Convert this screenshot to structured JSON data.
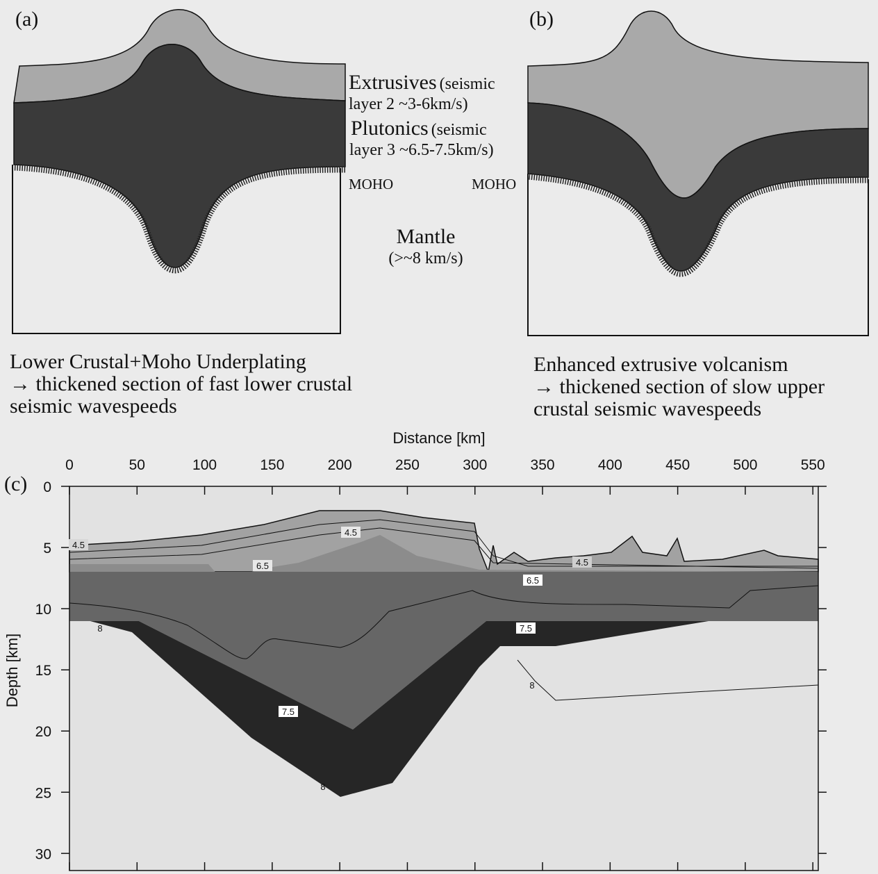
{
  "panel_a": {
    "label": "(a)",
    "caption": [
      "Lower Crustal+Moho Underplating",
      "→ thickened section of fast lower crustal",
      "seismic wavespeeds"
    ]
  },
  "panel_b": {
    "label": "(b)",
    "caption": [
      "Enhanced extrusive volcanism",
      "→ thickened section of slow upper",
      "crustal seismic wavespeeds"
    ]
  },
  "legend": {
    "extrusives": "Extrusives",
    "extrusives_note": "(seismic",
    "extrusives_speed": "layer 2  ~3-6km/s)",
    "plutonics": "Plutonics",
    "plutonics_note": "(seismic",
    "plutonics_speed": "layer 3  ~6.5-7.5km/s)",
    "moho_a": "MOHO",
    "moho_b": "MOHO",
    "mantle": "Mantle",
    "mantle_speed": "(>~8 km/s)"
  },
  "panel_c": {
    "label": "(c)",
    "xlabel": "Distance [km]",
    "ylabel": "Depth [km]",
    "xlim": [
      0,
      554
    ],
    "ylim": [
      0,
      31.4
    ],
    "xticks": [
      0,
      50,
      100,
      150,
      200,
      250,
      300,
      350,
      400,
      450,
      500,
      550
    ],
    "yticks": [
      0,
      5,
      10,
      15,
      20,
      25,
      30
    ],
    "contour_labels": [
      4.5,
      4.5,
      6.5,
      4.5,
      6.5,
      7.5,
      8,
      8,
      7.5,
      8
    ]
  }
}
